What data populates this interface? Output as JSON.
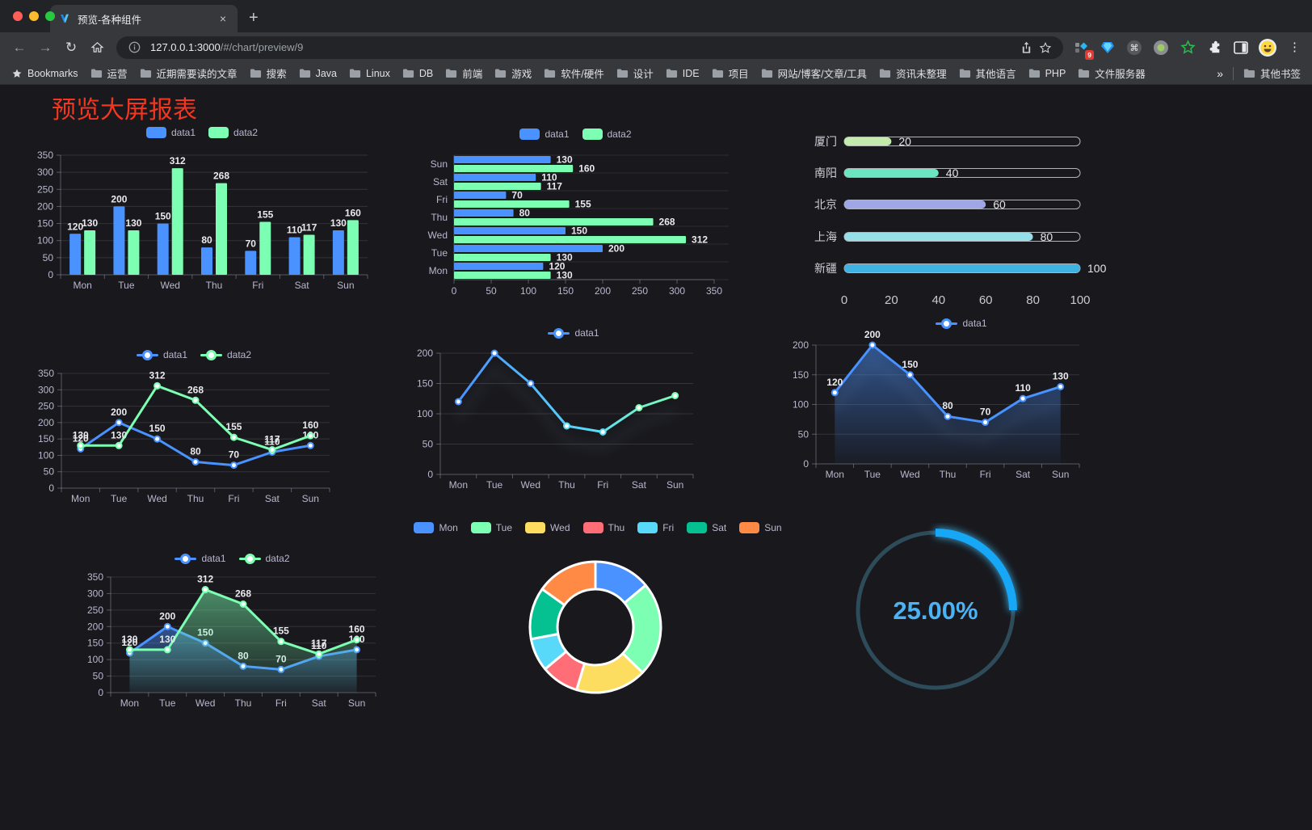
{
  "browser": {
    "tab": {
      "title": "预览-各种组件",
      "close_label": "×"
    },
    "new_tab_label": "+",
    "url": {
      "host": "127.0.0.1:3000",
      "path": "/#/chart/preview/9"
    },
    "extension_badge": "9",
    "bookmarks_bar": {
      "bookmarks_label": "Bookmarks",
      "folders": [
        "运营",
        "近期需要读的文章",
        "搜索",
        "Java",
        "Linux",
        "DB",
        "前端",
        "游戏",
        "软件/硬件",
        "设计",
        "IDE",
        "项目",
        "网站/博客/文章/工具",
        "资讯未整理",
        "其他语言",
        "PHP",
        "文件服务器"
      ],
      "overflow_chevron": "»",
      "other_bookmarks_label": "其他书签"
    }
  },
  "page": {
    "title": "预览大屏报表"
  },
  "palette": {
    "data1": "#4992ff",
    "data2": "#7cffb2"
  },
  "chart_data": [
    {
      "id": "grouped_bar",
      "type": "bar",
      "categories": [
        "Mon",
        "Tue",
        "Wed",
        "Thu",
        "Fri",
        "Sat",
        "Sun"
      ],
      "series": [
        {
          "name": "data1",
          "color": "#4992ff",
          "values": [
            120,
            200,
            150,
            80,
            70,
            110,
            130
          ]
        },
        {
          "name": "data2",
          "color": "#7cffb2",
          "values": [
            130,
            130,
            312,
            268,
            155,
            117,
            160
          ]
        }
      ],
      "ylim": [
        0,
        350
      ],
      "ytick": 50,
      "legend_position": "top",
      "grid": true,
      "value_labels": true
    },
    {
      "id": "grouped_hbar",
      "type": "bar-horizontal",
      "categories": [
        "Mon",
        "Tue",
        "Wed",
        "Thu",
        "Fri",
        "Sat",
        "Sun"
      ],
      "series": [
        {
          "name": "data1",
          "color": "#4992ff",
          "values": [
            120,
            200,
            150,
            80,
            70,
            110,
            130
          ]
        },
        {
          "name": "data2",
          "color": "#7cffb2",
          "values": [
            130,
            130,
            312,
            268,
            155,
            117,
            160
          ]
        }
      ],
      "xlim": [
        0,
        350
      ],
      "xtick": 50,
      "legend_position": "top",
      "value_labels": true
    },
    {
      "id": "city_progress",
      "type": "bar-horizontal",
      "categories": [
        "厦门",
        "南阳",
        "北京",
        "上海",
        "新疆"
      ],
      "values": [
        20,
        40,
        60,
        80,
        100
      ],
      "colors": [
        "#c4ebad",
        "#6be6c1",
        "#a0a7e6",
        "#96dee8",
        "#3fb1e3"
      ],
      "xlim": [
        0,
        100
      ],
      "xticks": [
        0,
        20,
        40,
        60,
        80,
        100
      ],
      "value_labels": true
    },
    {
      "id": "dual_line",
      "type": "line",
      "categories": [
        "Mon",
        "Tue",
        "Wed",
        "Thu",
        "Fri",
        "Sat",
        "Sun"
      ],
      "series": [
        {
          "name": "data1",
          "color": "#4992ff",
          "values": [
            120,
            200,
            150,
            80,
            70,
            110,
            130
          ]
        },
        {
          "name": "data2",
          "color": "#7cffb2",
          "values": [
            130,
            130,
            312,
            268,
            155,
            117,
            160
          ]
        }
      ],
      "ylim": [
        0,
        350
      ],
      "ytick": 50,
      "legend_position": "top",
      "value_labels": true
    },
    {
      "id": "gradient_line",
      "type": "line",
      "categories": [
        "Mon",
        "Tue",
        "Wed",
        "Thu",
        "Fri",
        "Sat",
        "Sun"
      ],
      "series": [
        {
          "name": "data1",
          "color": "#4992ff",
          "gradient": [
            "#4992ff",
            "#58d9f9",
            "#7cffb2"
          ],
          "values": [
            120,
            200,
            150,
            80,
            70,
            110,
            130
          ]
        }
      ],
      "ylim": [
        0,
        200
      ],
      "ytick": 50,
      "legend_position": "top",
      "value_labels": false
    },
    {
      "id": "area_line",
      "type": "area",
      "categories": [
        "Mon",
        "Tue",
        "Wed",
        "Thu",
        "Fri",
        "Sat",
        "Sun"
      ],
      "series": [
        {
          "name": "data1",
          "color": "#4992ff",
          "values": [
            120,
            200,
            150,
            80,
            70,
            110,
            130
          ]
        }
      ],
      "ylim": [
        0,
        200
      ],
      "ytick": 50,
      "legend_position": "top",
      "value_labels": true
    },
    {
      "id": "dual_area",
      "type": "area",
      "categories": [
        "Mon",
        "Tue",
        "Wed",
        "Thu",
        "Fri",
        "Sat",
        "Sun"
      ],
      "series": [
        {
          "name": "data1",
          "color": "#4992ff",
          "values": [
            120,
            200,
            150,
            80,
            70,
            110,
            130
          ]
        },
        {
          "name": "data2",
          "color": "#7cffb2",
          "values": [
            130,
            130,
            312,
            268,
            155,
            117,
            160
          ]
        }
      ],
      "ylim": [
        0,
        350
      ],
      "ytick": 50,
      "legend_position": "top",
      "value_labels": true
    },
    {
      "id": "donut",
      "type": "pie",
      "categories": [
        "Mon",
        "Tue",
        "Wed",
        "Thu",
        "Fri",
        "Sat",
        "Sun"
      ],
      "values": [
        120,
        200,
        150,
        80,
        70,
        110,
        130
      ],
      "colors": [
        "#4992ff",
        "#7cffb2",
        "#fddd60",
        "#ff6e76",
        "#58d9f9",
        "#05c091",
        "#ff8a45"
      ],
      "inner_radius_ratio": 0.58,
      "legend_position": "top"
    },
    {
      "id": "gauge",
      "type": "gauge",
      "value": 25,
      "max": 100,
      "label": "25.00%",
      "arc_color": "#13a8f6",
      "track_color": "#2d4b59",
      "text_color": "#4bb2f4"
    }
  ]
}
